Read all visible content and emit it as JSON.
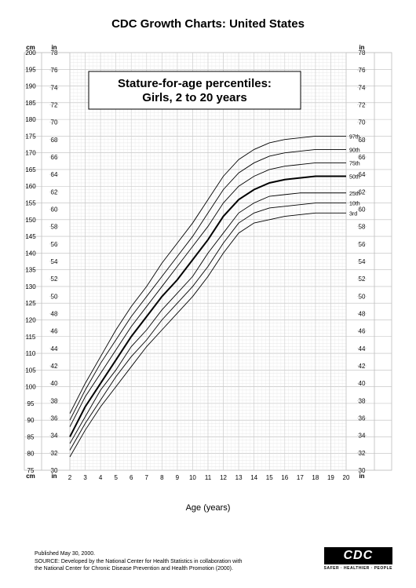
{
  "title": "CDC Growth Charts: United States",
  "chart_title_line1": "Stature-for-age percentiles:",
  "chart_title_line2": "Girls, 2 to 20 years",
  "x_axis_label": "Age (years)",
  "footer_published": "Published May 30, 2000.",
  "footer_source": "SOURCE: Developed by the National Center for Health Statistics in collaboration with\nthe National Center for Chronic Disease Prevention and Health Promotion (2000).",
  "cdc_logo_text": "CDC",
  "cdc_tagline": "SAFER · HEALTHIER · PEOPLE",
  "chart": {
    "type": "line-percentile",
    "background_color": "#ffffff",
    "grid_major_color": "#bdbdbd",
    "grid_minor_color": "#e2e2e2",
    "line_color": "#000000",
    "line_width_normal": 0.9,
    "line_width_bold": 2.0,
    "font_size_tick": 8,
    "font_size_unit": 8,
    "font_size_title": 15,
    "title_box_border": "#000000",
    "title_box_bg": "#ffffff",
    "y_left_cm": {
      "min": 75,
      "max": 200,
      "step": 5,
      "minor_step": 1,
      "label": "cm"
    },
    "y_in": {
      "min": 30,
      "max": 78,
      "step": 2,
      "minor_step": 1,
      "label": "in"
    },
    "x_age": {
      "min": 2,
      "max": 20,
      "step": 1,
      "label": "years"
    },
    "x_tick_labels_left": [
      "2",
      "3",
      "4",
      "5",
      "6",
      "7",
      "8",
      "9",
      "10",
      "11",
      "12"
    ],
    "x_tick_labels_right": [
      "13",
      "14",
      "15",
      "16",
      "17",
      "18",
      "19",
      "20"
    ],
    "percentile_labels": [
      "97th",
      "90th",
      "75th",
      "50th",
      "25th",
      "10th",
      "3rd"
    ],
    "series": [
      {
        "name": "3rd",
        "bold": false,
        "end_label": "3rd",
        "points": [
          [
            2,
            79
          ],
          [
            3,
            87
          ],
          [
            4,
            94
          ],
          [
            5,
            100
          ],
          [
            6,
            106
          ],
          [
            7,
            112
          ],
          [
            8,
            117
          ],
          [
            9,
            122
          ],
          [
            10,
            127
          ],
          [
            11,
            133
          ],
          [
            12,
            140
          ],
          [
            13,
            146
          ],
          [
            14,
            149
          ],
          [
            15,
            150
          ],
          [
            16,
            151
          ],
          [
            17,
            151.5
          ],
          [
            18,
            152
          ],
          [
            19,
            152
          ],
          [
            20,
            152
          ]
        ]
      },
      {
        "name": "10th",
        "bold": false,
        "end_label": "10th",
        "points": [
          [
            2,
            81
          ],
          [
            3,
            89
          ],
          [
            4,
            96
          ],
          [
            5,
            103
          ],
          [
            6,
            109
          ],
          [
            7,
            114
          ],
          [
            8,
            120
          ],
          [
            9,
            125
          ],
          [
            10,
            130
          ],
          [
            11,
            136
          ],
          [
            12,
            143
          ],
          [
            13,
            149
          ],
          [
            14,
            152
          ],
          [
            15,
            153.5
          ],
          [
            16,
            154
          ],
          [
            17,
            154.5
          ],
          [
            18,
            155
          ],
          [
            19,
            155
          ],
          [
            20,
            155
          ]
        ]
      },
      {
        "name": "25th",
        "bold": false,
        "end_label": "25th",
        "points": [
          [
            2,
            83
          ],
          [
            3,
            91
          ],
          [
            4,
            99
          ],
          [
            5,
            105
          ],
          [
            6,
            112
          ],
          [
            7,
            117
          ],
          [
            8,
            123
          ],
          [
            9,
            128
          ],
          [
            10,
            133
          ],
          [
            11,
            140
          ],
          [
            12,
            146
          ],
          [
            13,
            152
          ],
          [
            14,
            155
          ],
          [
            15,
            157
          ],
          [
            16,
            157.5
          ],
          [
            17,
            158
          ],
          [
            18,
            158
          ],
          [
            19,
            158
          ],
          [
            20,
            158
          ]
        ]
      },
      {
        "name": "50th",
        "bold": true,
        "end_label": "50th",
        "points": [
          [
            2,
            85
          ],
          [
            3,
            94
          ],
          [
            4,
            101
          ],
          [
            5,
            108
          ],
          [
            6,
            115
          ],
          [
            7,
            121
          ],
          [
            8,
            127
          ],
          [
            9,
            132
          ],
          [
            10,
            138
          ],
          [
            11,
            144
          ],
          [
            12,
            151
          ],
          [
            13,
            156
          ],
          [
            14,
            159
          ],
          [
            15,
            161
          ],
          [
            16,
            162
          ],
          [
            17,
            162.5
          ],
          [
            18,
            163
          ],
          [
            19,
            163
          ],
          [
            20,
            163
          ]
        ]
      },
      {
        "name": "75th",
        "bold": false,
        "end_label": "75th",
        "points": [
          [
            2,
            88
          ],
          [
            3,
            97
          ],
          [
            4,
            104
          ],
          [
            5,
            111
          ],
          [
            6,
            118
          ],
          [
            7,
            124
          ],
          [
            8,
            130
          ],
          [
            9,
            136
          ],
          [
            10,
            142
          ],
          [
            11,
            148
          ],
          [
            12,
            155
          ],
          [
            13,
            160
          ],
          [
            14,
            163
          ],
          [
            15,
            165
          ],
          [
            16,
            166
          ],
          [
            17,
            166.5
          ],
          [
            18,
            167
          ],
          [
            19,
            167
          ],
          [
            20,
            167
          ]
        ]
      },
      {
        "name": "90th",
        "bold": false,
        "end_label": "90th",
        "points": [
          [
            2,
            90
          ],
          [
            3,
            99
          ],
          [
            4,
            107
          ],
          [
            5,
            114
          ],
          [
            6,
            121
          ],
          [
            7,
            127
          ],
          [
            8,
            133
          ],
          [
            9,
            139
          ],
          [
            10,
            145
          ],
          [
            11,
            152
          ],
          [
            12,
            159
          ],
          [
            13,
            164
          ],
          [
            14,
            167
          ],
          [
            15,
            169
          ],
          [
            16,
            170
          ],
          [
            17,
            170.5
          ],
          [
            18,
            171
          ],
          [
            19,
            171
          ],
          [
            20,
            171
          ]
        ]
      },
      {
        "name": "97th",
        "bold": false,
        "end_label": "97th",
        "points": [
          [
            2,
            92
          ],
          [
            3,
            101
          ],
          [
            4,
            109
          ],
          [
            5,
            117
          ],
          [
            6,
            124
          ],
          [
            7,
            130
          ],
          [
            8,
            137
          ],
          [
            9,
            143
          ],
          [
            10,
            149
          ],
          [
            11,
            156
          ],
          [
            12,
            163
          ],
          [
            13,
            168
          ],
          [
            14,
            171
          ],
          [
            15,
            173
          ],
          [
            16,
            174
          ],
          [
            17,
            174.5
          ],
          [
            18,
            175
          ],
          [
            19,
            175
          ],
          [
            20,
            175
          ]
        ]
      }
    ]
  }
}
